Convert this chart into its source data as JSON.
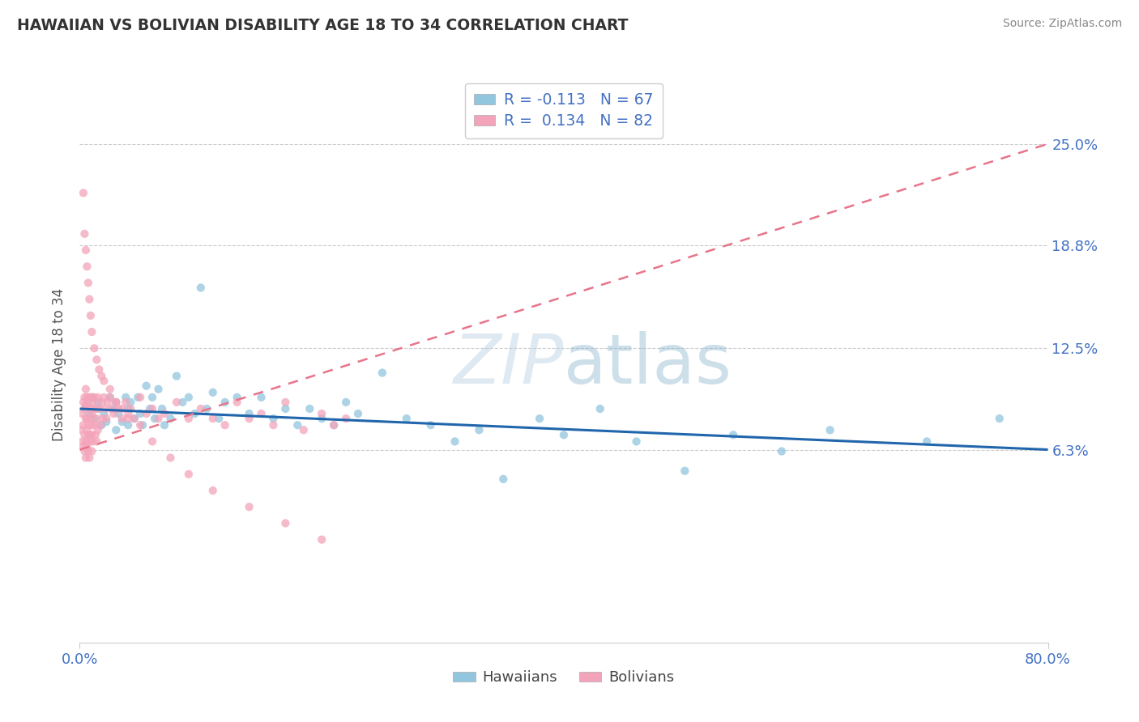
{
  "title": "HAWAIIAN VS BOLIVIAN DISABILITY AGE 18 TO 34 CORRELATION CHART",
  "source": "Source: ZipAtlas.com",
  "ylabel": "Disability Age 18 to 34",
  "ytick_labels": [
    "6.3%",
    "12.5%",
    "18.8%",
    "25.0%"
  ],
  "ytick_values": [
    0.063,
    0.125,
    0.188,
    0.25
  ],
  "xmin": 0.0,
  "xmax": 0.8,
  "ymin": -0.055,
  "ymax": 0.285,
  "hawaiian_color": "#92c5de",
  "bolivian_color": "#f4a4ba",
  "hawaiian_line_color": "#2166ac",
  "bolivian_line_color": "#e8748a",
  "watermark_color": "#cce0f0",
  "legend_label1": "R = -0.113   N = 67",
  "legend_label2": "R =  0.134   N = 82",
  "legend_text_color": "#4472c4",
  "legend_R_color": "#4472c4",
  "bottom_legend1": "Hawaiians",
  "bottom_legend2": "Bolivians",
  "hawaiian_x": [
    0.005,
    0.008,
    0.01,
    0.012,
    0.015,
    0.015,
    0.018,
    0.02,
    0.022,
    0.025,
    0.028,
    0.03,
    0.03,
    0.032,
    0.035,
    0.038,
    0.04,
    0.04,
    0.042,
    0.045,
    0.048,
    0.05,
    0.052,
    0.055,
    0.058,
    0.06,
    0.062,
    0.065,
    0.068,
    0.07,
    0.075,
    0.08,
    0.085,
    0.09,
    0.095,
    0.1,
    0.105,
    0.11,
    0.115,
    0.12,
    0.13,
    0.14,
    0.15,
    0.16,
    0.17,
    0.18,
    0.19,
    0.2,
    0.21,
    0.22,
    0.23,
    0.25,
    0.27,
    0.29,
    0.31,
    0.33,
    0.35,
    0.38,
    0.4,
    0.43,
    0.46,
    0.5,
    0.54,
    0.58,
    0.62,
    0.7,
    0.76
  ],
  "hawaiian_y": [
    0.09,
    0.085,
    0.095,
    0.082,
    0.088,
    0.092,
    0.078,
    0.085,
    0.08,
    0.095,
    0.088,
    0.075,
    0.092,
    0.085,
    0.08,
    0.095,
    0.088,
    0.078,
    0.092,
    0.082,
    0.095,
    0.085,
    0.078,
    0.102,
    0.088,
    0.095,
    0.082,
    0.1,
    0.088,
    0.078,
    0.082,
    0.108,
    0.092,
    0.095,
    0.085,
    0.162,
    0.088,
    0.098,
    0.082,
    0.092,
    0.095,
    0.085,
    0.095,
    0.082,
    0.088,
    0.078,
    0.088,
    0.082,
    0.078,
    0.092,
    0.085,
    0.11,
    0.082,
    0.078,
    0.068,
    0.075,
    0.045,
    0.082,
    0.072,
    0.088,
    0.068,
    0.05,
    0.072,
    0.062,
    0.075,
    0.068,
    0.082
  ],
  "bolivian_x": [
    0.001,
    0.002,
    0.002,
    0.003,
    0.003,
    0.003,
    0.004,
    0.004,
    0.004,
    0.004,
    0.005,
    0.005,
    0.005,
    0.005,
    0.005,
    0.006,
    0.006,
    0.006,
    0.006,
    0.007,
    0.007,
    0.007,
    0.007,
    0.008,
    0.008,
    0.008,
    0.008,
    0.009,
    0.009,
    0.01,
    0.01,
    0.01,
    0.01,
    0.01,
    0.01,
    0.011,
    0.011,
    0.012,
    0.012,
    0.013,
    0.013,
    0.014,
    0.014,
    0.015,
    0.015,
    0.016,
    0.017,
    0.018,
    0.019,
    0.02,
    0.021,
    0.022,
    0.023,
    0.025,
    0.026,
    0.028,
    0.03,
    0.032,
    0.035,
    0.038,
    0.04,
    0.042,
    0.045,
    0.05,
    0.055,
    0.06,
    0.065,
    0.07,
    0.08,
    0.09,
    0.1,
    0.11,
    0.12,
    0.13,
    0.14,
    0.15,
    0.16,
    0.17,
    0.185,
    0.2,
    0.21,
    0.22
  ],
  "bolivian_y": [
    0.075,
    0.085,
    0.068,
    0.092,
    0.078,
    0.065,
    0.088,
    0.072,
    0.095,
    0.062,
    0.1,
    0.082,
    0.068,
    0.09,
    0.058,
    0.095,
    0.075,
    0.065,
    0.082,
    0.092,
    0.072,
    0.078,
    0.062,
    0.088,
    0.068,
    0.095,
    0.058,
    0.082,
    0.072,
    0.095,
    0.085,
    0.072,
    0.062,
    0.088,
    0.078,
    0.092,
    0.068,
    0.095,
    0.078,
    0.088,
    0.072,
    0.082,
    0.068,
    0.095,
    0.075,
    0.088,
    0.078,
    0.092,
    0.082,
    0.095,
    0.088,
    0.082,
    0.092,
    0.095,
    0.088,
    0.085,
    0.092,
    0.088,
    0.082,
    0.092,
    0.085,
    0.088,
    0.082,
    0.095,
    0.085,
    0.088,
    0.082,
    0.085,
    0.092,
    0.082,
    0.088,
    0.082,
    0.078,
    0.092,
    0.082,
    0.085,
    0.078,
    0.092,
    0.075,
    0.085,
    0.078,
    0.082
  ],
  "bolivian_outliers_x": [
    0.003,
    0.004,
    0.005,
    0.006,
    0.007,
    0.008,
    0.009,
    0.01,
    0.012,
    0.014,
    0.016,
    0.018,
    0.02,
    0.025,
    0.03,
    0.035,
    0.04,
    0.05,
    0.06,
    0.075,
    0.09,
    0.11,
    0.14,
    0.17,
    0.2
  ],
  "bolivian_outliers_y": [
    0.22,
    0.195,
    0.185,
    0.175,
    0.165,
    0.155,
    0.145,
    0.135,
    0.125,
    0.118,
    0.112,
    0.108,
    0.105,
    0.1,
    0.092,
    0.088,
    0.082,
    0.078,
    0.068,
    0.058,
    0.048,
    0.038,
    0.028,
    0.018,
    0.008
  ]
}
